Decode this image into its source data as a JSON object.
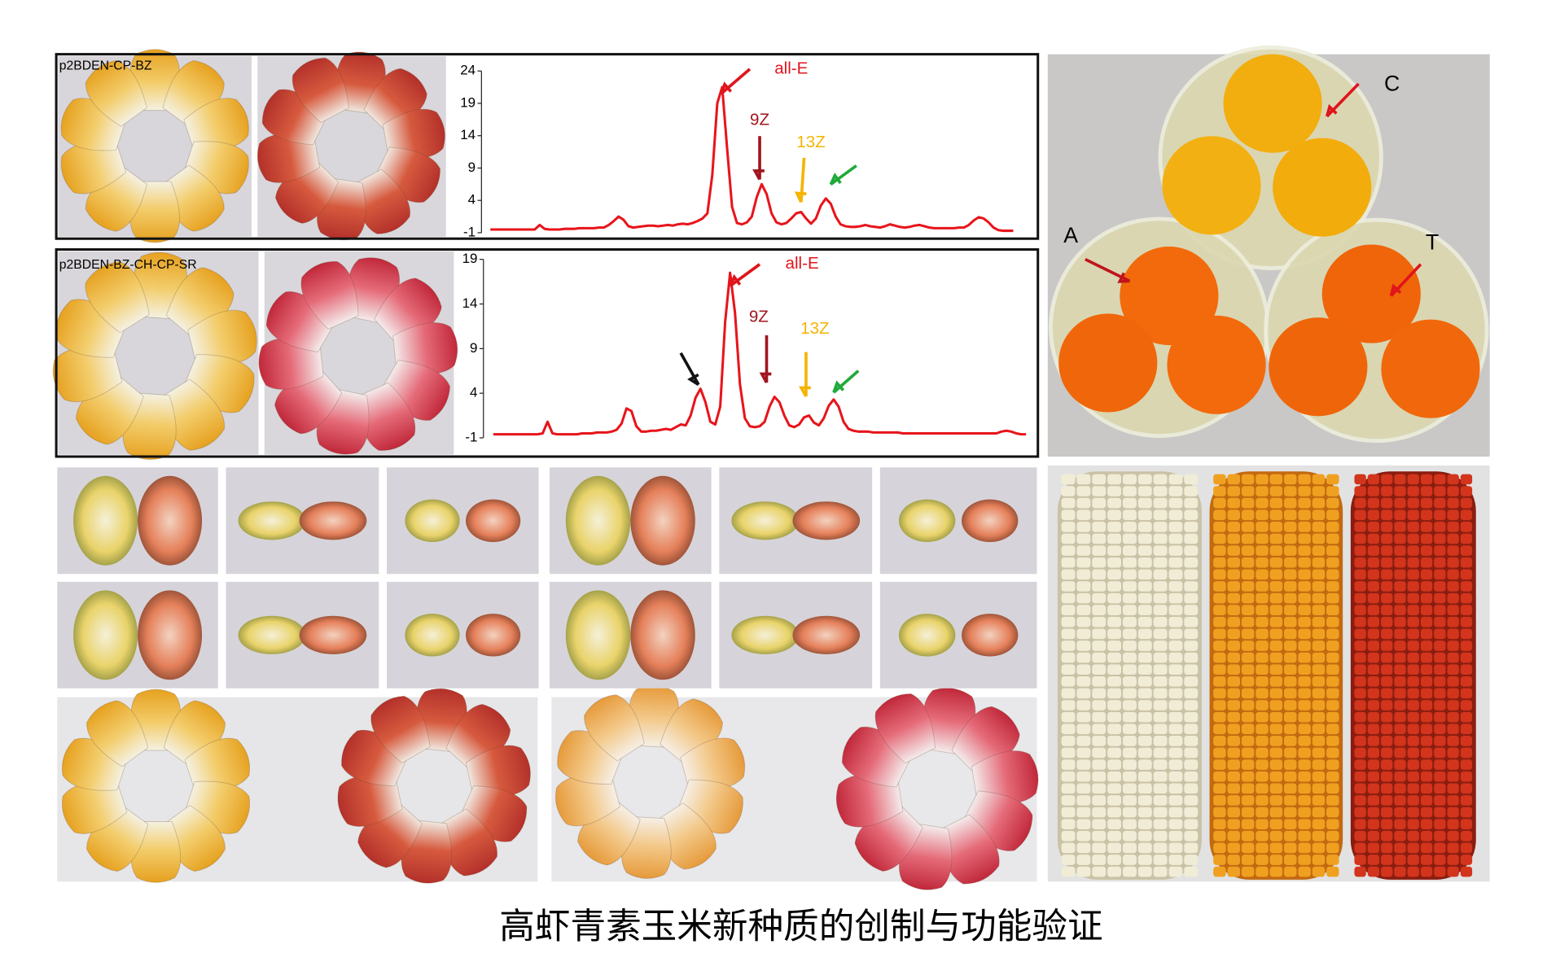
{
  "title": "高虾青素玉米新种质的创制与功能验证",
  "egg_labels": [
    "C",
    "A",
    "T"
  ],
  "chart_data": [
    {
      "type": "line",
      "label": "p2BDEN-CP-BZ",
      "color": "#e8141b",
      "ylim": [
        -1,
        24
      ],
      "yticks": [
        -1,
        4,
        9,
        14,
        19,
        24
      ],
      "annotations": [
        "all-E",
        "9Z",
        "13Z"
      ],
      "values": [
        -0.5,
        -0.5,
        -0.5,
        -0.5,
        -0.5,
        -0.5,
        -0.5,
        -0.5,
        -0.5,
        -0.5,
        0.2,
        -0.4,
        -0.5,
        -0.5,
        -0.5,
        -0.4,
        -0.4,
        -0.4,
        -0.3,
        -0.3,
        -0.3,
        -0.3,
        -0.2,
        -0.2,
        0.2,
        0.8,
        1.5,
        1.0,
        0.0,
        -0.2,
        -0.1,
        0,
        0.1,
        0.1,
        0,
        0.1,
        0.2,
        0.1,
        0.3,
        0.4,
        0.3,
        0.5,
        0.8,
        1.2,
        2.0,
        8,
        19,
        21.5,
        12,
        3,
        0.5,
        0.3,
        0.6,
        1.5,
        4.5,
        6.5,
        5,
        2,
        0.6,
        0.3,
        0.5,
        1.2,
        2,
        2.2,
        1.2,
        0.4,
        1.2,
        3.2,
        4.3,
        3.5,
        1.5,
        0.3,
        0,
        -0.1,
        -0.1,
        0,
        0.2,
        0,
        -0.1,
        -0.2,
        0,
        0.3,
        0.1,
        -0.1,
        -0.2,
        -0.1,
        0.1,
        0.2,
        0,
        -0.2,
        -0.3,
        -0.3,
        -0.3,
        -0.3,
        -0.3,
        -0.2,
        -0.2,
        0.2,
        0.9,
        1.4,
        1.2,
        0.6,
        -0.2,
        -0.6,
        -0.7,
        -0.7,
        -0.7
      ]
    },
    {
      "type": "line",
      "label": "p2BDEN-BZ-CH-CP-SR",
      "color": "#e8141b",
      "ylim": [
        -1,
        19
      ],
      "yticks": [
        -1,
        4,
        9,
        14,
        19
      ],
      "annotations": [
        "all-E",
        "9Z",
        "13Z"
      ],
      "values": [
        -0.6,
        -0.6,
        -0.6,
        -0.6,
        -0.6,
        -0.6,
        -0.6,
        -0.6,
        -0.6,
        -0.6,
        -0.5,
        0.8,
        -0.5,
        -0.6,
        -0.6,
        -0.6,
        -0.6,
        -0.6,
        -0.5,
        -0.5,
        -0.5,
        -0.4,
        -0.4,
        -0.4,
        -0.3,
        -0.1,
        0.6,
        2.3,
        2.0,
        0.3,
        -0.3,
        -0.3,
        -0.2,
        -0.2,
        -0.1,
        0,
        -0.1,
        0.2,
        0.5,
        0.4,
        1.5,
        3.5,
        4.5,
        3.0,
        0.8,
        0.5,
        2.5,
        12,
        17.5,
        13,
        5,
        1.2,
        0.3,
        0.2,
        0.3,
        0.8,
        2.5,
        3.6,
        3.0,
        1.5,
        0.4,
        0.2,
        0.5,
        1.3,
        1.5,
        0.7,
        0.4,
        1.2,
        2.6,
        3.3,
        2.5,
        0.8,
        0,
        -0.2,
        -0.3,
        -0.3,
        -0.3,
        -0.4,
        -0.4,
        -0.4,
        -0.4,
        -0.4,
        -0.4,
        -0.5,
        -0.5,
        -0.5,
        -0.5,
        -0.5,
        -0.5,
        -0.5,
        -0.5,
        -0.5,
        -0.5,
        -0.5,
        -0.5,
        -0.5,
        -0.5,
        -0.5,
        -0.5,
        -0.5,
        -0.5,
        -0.5,
        -0.5,
        -0.3,
        -0.2,
        -0.3,
        -0.5,
        -0.6,
        -0.6
      ]
    }
  ]
}
